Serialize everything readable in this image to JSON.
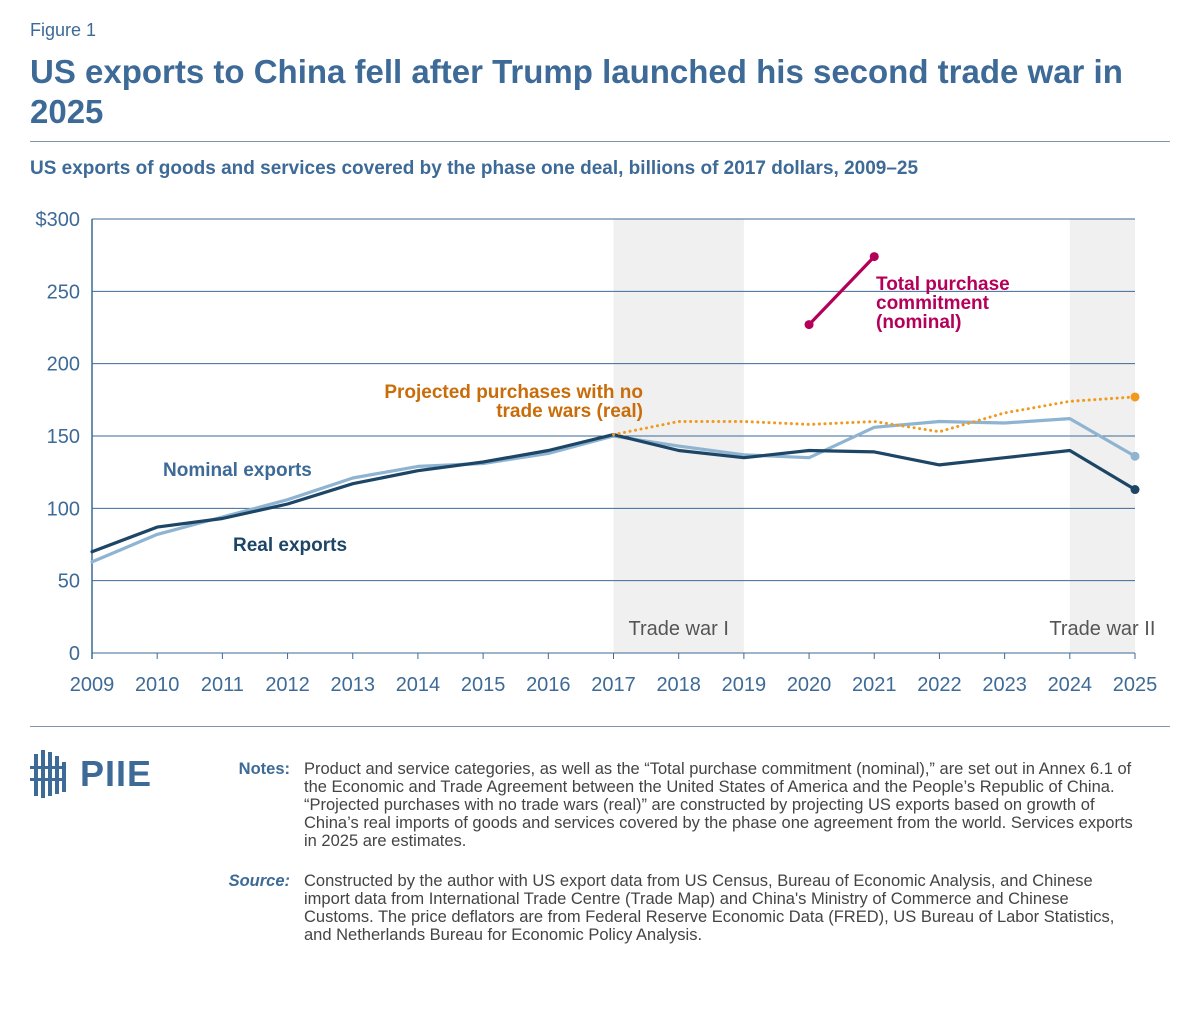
{
  "figure_label": "Figure 1",
  "title": "US exports to China fell after Trump launched his second trade war in 2025",
  "subtitle": "US exports of goods and services covered by the phase one deal, billions of 2017 dollars, 2009–25",
  "logo_text": "PIIE",
  "notes": {
    "notes_label": "Notes:",
    "notes_text": "Product and service categories, as well as the “Total purchase commitment (nominal),” are set out in Annex 6.1 of the Economic and Trade Agreement between the United States of America and the People’s Republic of China. “Projected purchases with no trade wars (real)” are constructed by projecting US exports based on growth of China’s real imports of goods and services covered by the phase one agreement from the world. Services exports in 2025 are estimates.",
    "source_label": "Source:",
    "source_text": "Constructed by the author with US export data from US Census, Bureau of Economic Analysis, and Chinese import data from International Trade Centre (Trade Map) and China's Ministry of Commerce and Chinese Customs. The price deflators are from Federal Reserve Economic Data (FRED), US Bureau of Labor Statistics, and Netherlands Bureau for Economic Policy Analysis."
  },
  "chart_data": {
    "type": "line",
    "x": [
      2009,
      2010,
      2011,
      2012,
      2013,
      2014,
      2015,
      2016,
      2017,
      2018,
      2019,
      2020,
      2021,
      2022,
      2023,
      2024,
      2025
    ],
    "y_tick_labels": [
      "0",
      "50",
      "100",
      "150",
      "200",
      "250",
      "$300"
    ],
    "ylim": [
      0,
      300
    ],
    "grid": true,
    "shaded_periods": [
      {
        "label": "Trade war I",
        "start": 2017,
        "end": 2019
      },
      {
        "label": "Trade war II",
        "start": 2024,
        "end": 2025
      }
    ],
    "series": [
      {
        "name": "Nominal exports",
        "label": "Nominal exports",
        "color": "#8fb4d2",
        "style": "solid",
        "x": [
          2009,
          2010,
          2011,
          2012,
          2013,
          2014,
          2015,
          2016,
          2017,
          2018,
          2019,
          2020,
          2021,
          2022,
          2023,
          2024,
          2025
        ],
        "values": [
          63,
          82,
          94,
          106,
          121,
          129,
          131,
          138,
          150,
          143,
          137,
          135,
          156,
          160,
          159,
          162,
          136
        ],
        "end_marker": true
      },
      {
        "name": "Real exports",
        "label": "Real exports",
        "color": "#1d4565",
        "style": "solid",
        "x": [
          2009,
          2010,
          2011,
          2012,
          2013,
          2014,
          2015,
          2016,
          2017,
          2018,
          2019,
          2020,
          2021,
          2022,
          2023,
          2024,
          2025
        ],
        "values": [
          70,
          87,
          93,
          103,
          117,
          126,
          132,
          140,
          151,
          140,
          135,
          140,
          139,
          130,
          135,
          140,
          113
        ],
        "end_marker": true
      },
      {
        "name": "Projected purchases with no trade wars (real)",
        "label_lines": [
          "Projected purchases with no",
          "trade wars (real)"
        ],
        "color": "#f09a1e",
        "style": "dotted",
        "x": [
          2017,
          2018,
          2019,
          2020,
          2021,
          2022,
          2023,
          2024,
          2025
        ],
        "values": [
          151,
          160,
          160,
          158,
          160,
          153,
          166,
          174,
          177
        ],
        "end_marker": true
      },
      {
        "name": "Total purchase commitment (nominal)",
        "label_lines": [
          "Total purchase",
          "commitment",
          "(nominal)"
        ],
        "color": "#b5005a",
        "style": "solid",
        "x": [
          2020,
          2021
        ],
        "values": [
          227,
          274
        ],
        "start_marker": true,
        "end_marker": true
      }
    ]
  }
}
